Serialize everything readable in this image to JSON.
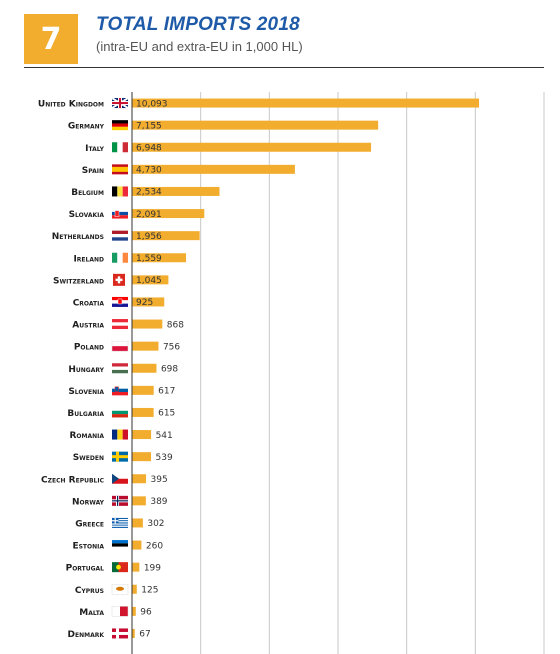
{
  "header": {
    "number": "7",
    "title": "TOTAL IMPORTS 2018",
    "subtitle": "(intra-EU and extra-EU in 1,000 HL)"
  },
  "colors": {
    "bar": "#f2ad2f",
    "accent": "#1e5aa8",
    "grid": "#c8c8c8",
    "axis": "#333333"
  },
  "chart_data": {
    "type": "bar",
    "orientation": "horizontal",
    "title": "TOTAL IMPORTS 2018",
    "subtitle": "(intra-EU and extra-EU in 1,000 HL)",
    "xlabel": "",
    "ylabel": "",
    "xlim": [
      0,
      12000
    ],
    "grid": true,
    "categories": [
      "United Kingdom",
      "Germany",
      "Italy",
      "Spain",
      "Belgium",
      "Slovakia",
      "Netherlands",
      "Ireland",
      "Switzerland",
      "Croatia",
      "Austria",
      "Poland",
      "Hungary",
      "Slovenia",
      "Bulgaria",
      "Romania",
      "Sweden",
      "Czech Republic",
      "Norway",
      "Greece",
      "Estonia",
      "Portugal",
      "Cyprus",
      "Malta",
      "Denmark"
    ],
    "values": [
      10093,
      7155,
      6948,
      4730,
      2534,
      2091,
      1956,
      1559,
      1045,
      925,
      868,
      756,
      698,
      617,
      615,
      541,
      539,
      395,
      389,
      302,
      260,
      199,
      125,
      96,
      67
    ],
    "value_labels": [
      "10,093",
      "7,155",
      "6,948",
      "4,730",
      "2,534",
      "2,091",
      "1,956",
      "1,559",
      "1,045",
      "925",
      "868",
      "756",
      "698",
      "617",
      "615",
      "541",
      "539",
      "395",
      "389",
      "302",
      "260",
      "199",
      "125",
      "96",
      "67"
    ],
    "flags": [
      "uk-flag-icon",
      "germany-flag-icon",
      "italy-flag-icon",
      "spain-flag-icon",
      "belgium-flag-icon",
      "slovakia-flag-icon",
      "netherlands-flag-icon",
      "ireland-flag-icon",
      "switzerland-flag-icon",
      "croatia-flag-icon",
      "austria-flag-icon",
      "poland-flag-icon",
      "hungary-flag-icon",
      "slovenia-flag-icon",
      "bulgaria-flag-icon",
      "romania-flag-icon",
      "sweden-flag-icon",
      "czech-flag-icon",
      "norway-flag-icon",
      "greece-flag-icon",
      "estonia-flag-icon",
      "portugal-flag-icon",
      "cyprus-flag-icon",
      "malta-flag-icon",
      "denmark-flag-icon"
    ]
  }
}
